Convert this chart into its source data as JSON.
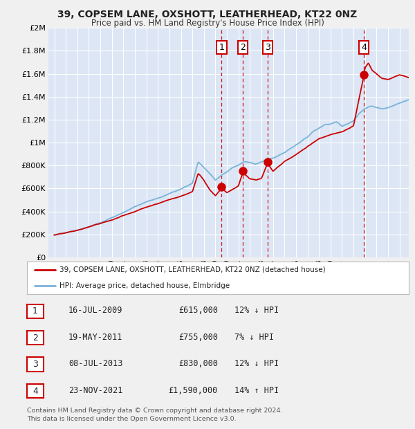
{
  "title1": "39, COPSEM LANE, OXSHOTT, LEATHERHEAD, KT22 0NZ",
  "title2": "Price paid vs. HM Land Registry's House Price Index (HPI)",
  "ytick_values": [
    0,
    200000,
    400000,
    600000,
    800000,
    1000000,
    1200000,
    1400000,
    1600000,
    1800000,
    2000000
  ],
  "ytick_labels": [
    "£0",
    "£200K",
    "£400K",
    "£600K",
    "£800K",
    "£1M",
    "£1.2M",
    "£1.4M",
    "£1.6M",
    "£1.8M",
    "£2M"
  ],
  "xlim": [
    1994.5,
    2025.8
  ],
  "ylim": [
    0,
    2000000
  ],
  "background_color": "#f0f0f0",
  "plot_bg_color": "#dce6f5",
  "grid_color": "#ffffff",
  "hpi_color": "#7ab3d8",
  "price_color": "#cc0000",
  "transactions": [
    {
      "num": 1,
      "date": "16-JUL-2009",
      "price": 615000,
      "year": 2009.54,
      "pct": "12%",
      "dir": "↓"
    },
    {
      "num": 2,
      "date": "19-MAY-2011",
      "price": 755000,
      "year": 2011.38,
      "pct": "7%",
      "dir": "↓"
    },
    {
      "num": 3,
      "date": "08-JUL-2013",
      "price": 830000,
      "year": 2013.52,
      "pct": "12%",
      "dir": "↓"
    },
    {
      "num": 4,
      "date": "23-NOV-2021",
      "price": 1590000,
      "year": 2021.9,
      "pct": "14%",
      "dir": "↑"
    }
  ],
  "legend_line1": "39, COPSEM LANE, OXSHOTT, LEATHERHEAD, KT22 0NZ (detached house)",
  "legend_line2": "HPI: Average price, detached house, Elmbridge",
  "footer1": "Contains HM Land Registry data © Crown copyright and database right 2024.",
  "footer2": "This data is licensed under the Open Government Licence v3.0.",
  "table_rows": [
    [
      "1",
      "16-JUL-2009",
      "£615,000",
      "12% ↓ HPI"
    ],
    [
      "2",
      "19-MAY-2011",
      "£755,000",
      "7% ↓ HPI"
    ],
    [
      "3",
      "08-JUL-2013",
      "£830,000",
      "12% ↓ HPI"
    ],
    [
      "4",
      "23-NOV-2021",
      "£1,590,000",
      "14% ↑ HPI"
    ]
  ],
  "hpi_knots_t": [
    1995,
    1996,
    1997,
    1998,
    1999,
    2000,
    2001,
    2002,
    2003,
    2004,
    2005,
    2006,
    2007,
    2007.5,
    2008,
    2008.5,
    2009,
    2009.5,
    2010,
    2010.5,
    2011,
    2011.5,
    2012,
    2012.5,
    2013,
    2013.5,
    2014,
    2015,
    2016,
    2017,
    2017.5,
    2018,
    2018.5,
    2019,
    2019.5,
    2020,
    2020.5,
    2021,
    2021.5,
    2022,
    2022.5,
    2023,
    2023.5,
    2024,
    2024.5,
    2025,
    2025.8
  ],
  "hpi_knots_v": [
    195000,
    215000,
    240000,
    270000,
    305000,
    350000,
    390000,
    440000,
    480000,
    520000,
    560000,
    600000,
    650000,
    840000,
    790000,
    740000,
    680000,
    720000,
    750000,
    790000,
    810000,
    840000,
    830000,
    820000,
    840000,
    860000,
    870000,
    920000,
    990000,
    1060000,
    1110000,
    1140000,
    1170000,
    1180000,
    1200000,
    1160000,
    1180000,
    1210000,
    1280000,
    1320000,
    1340000,
    1330000,
    1320000,
    1330000,
    1350000,
    1370000,
    1400000
  ],
  "price_knots_t": [
    1995,
    1996,
    1997,
    1998,
    1999,
    2000,
    2001,
    2002,
    2003,
    2004,
    2005,
    2006,
    2007,
    2007.5,
    2008,
    2008.5,
    2009,
    2009.54,
    2010,
    2010.5,
    2011,
    2011.38,
    2012,
    2012.5,
    2013,
    2013.52,
    2014,
    2015,
    2016,
    2017,
    2018,
    2019,
    2020,
    2021,
    2021.9,
    2022,
    2022.3,
    2022.6,
    2023,
    2023.5,
    2024,
    2024.5,
    2025,
    2025.8
  ],
  "price_knots_v": [
    195000,
    210000,
    230000,
    260000,
    290000,
    320000,
    360000,
    400000,
    440000,
    475000,
    510000,
    540000,
    580000,
    740000,
    680000,
    600000,
    550000,
    615000,
    580000,
    610000,
    640000,
    755000,
    700000,
    690000,
    700000,
    830000,
    760000,
    840000,
    900000,
    970000,
    1040000,
    1080000,
    1100000,
    1150000,
    1590000,
    1660000,
    1700000,
    1640000,
    1610000,
    1570000,
    1560000,
    1580000,
    1600000,
    1580000
  ]
}
